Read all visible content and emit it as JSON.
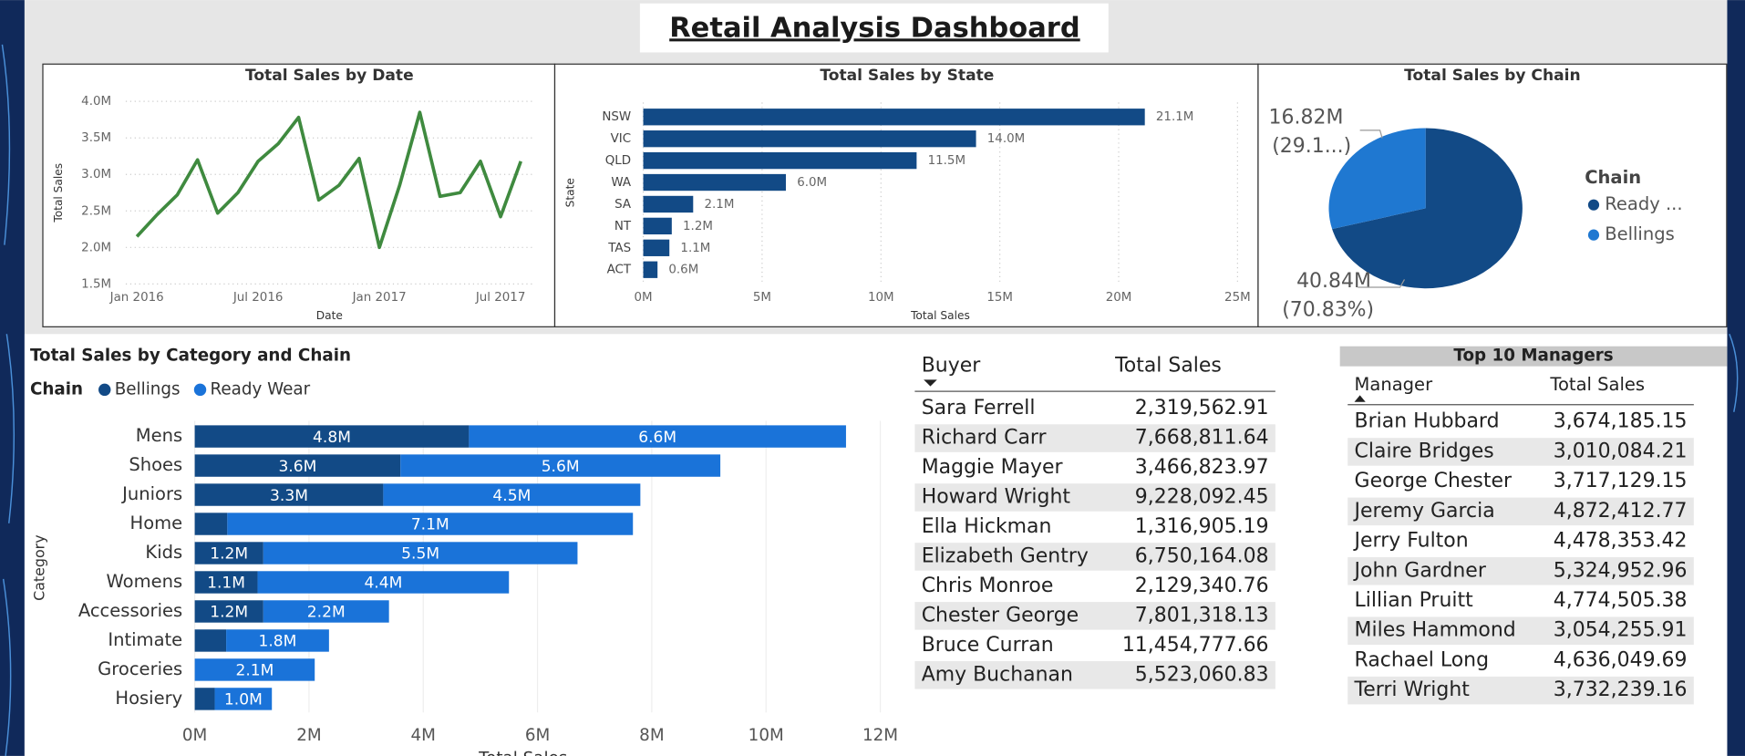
{
  "title": "Retail Analysis Dashboard",
  "chart_data": [
    {
      "type": "line",
      "title": "Total Sales by Date",
      "x_label": "Date",
      "y_label": "Total Sales",
      "color": "#3f8a3f",
      "x": [
        "2016-01",
        "2016-02",
        "2016-03",
        "2016-04",
        "2016-05",
        "2016-06",
        "2016-07",
        "2016-08",
        "2016-09",
        "2016-10",
        "2016-11",
        "2016-12",
        "2017-01",
        "2017-02",
        "2017-03",
        "2017-04",
        "2017-05",
        "2017-06",
        "2017-07",
        "2017-08"
      ],
      "values": [
        2150000,
        2450000,
        2720000,
        3200000,
        2470000,
        2750000,
        3180000,
        3420000,
        3780000,
        2650000,
        2850000,
        3220000,
        2000000,
        2850000,
        3850000,
        2700000,
        2750000,
        3180000,
        2420000,
        3180000
      ],
      "xlim": [
        "2016-01",
        "2017-08"
      ],
      "xticks": [
        {
          "value": "2016-01",
          "label": "Jan 2016"
        },
        {
          "value": "2016-07",
          "label": "Jul 2016"
        },
        {
          "value": "2017-01",
          "label": "Jan 2017"
        },
        {
          "value": "2017-07",
          "label": "Jul 2017"
        }
      ],
      "ylim": [
        1500000,
        4000000
      ],
      "yticks": [
        {
          "value": 1500000,
          "label": "1.5M"
        },
        {
          "value": 2000000,
          "label": "2.0M"
        },
        {
          "value": 2500000,
          "label": "2.5M"
        },
        {
          "value": 3000000,
          "label": "3.0M"
        },
        {
          "value": 3500000,
          "label": "3.5M"
        },
        {
          "value": 4000000,
          "label": "4.0M"
        }
      ],
      "grid": true
    },
    {
      "type": "bar",
      "orientation": "horizontal",
      "title": "Total Sales by State",
      "x_label": "Total Sales",
      "y_label": "State",
      "color": "#124a86",
      "categories": [
        "NSW",
        "VIC",
        "QLD",
        "WA",
        "SA",
        "NT",
        "TAS",
        "ACT"
      ],
      "values": [
        21100000,
        14000000,
        11500000,
        6000000,
        2100000,
        1200000,
        1100000,
        600000
      ],
      "value_labels": [
        "21.1M",
        "14.0M",
        "11.5M",
        "6.0M",
        "2.1M",
        "1.2M",
        "1.1M",
        "0.6M"
      ],
      "xlim": [
        0,
        25000000
      ],
      "xticks": [
        {
          "value": 0,
          "label": "0M"
        },
        {
          "value": 5000000,
          "label": "5M"
        },
        {
          "value": 10000000,
          "label": "10M"
        },
        {
          "value": 15000000,
          "label": "15M"
        },
        {
          "value": 20000000,
          "label": "20M"
        },
        {
          "value": 25000000,
          "label": "25M"
        }
      ],
      "grid": true
    },
    {
      "type": "pie",
      "title": "Total Sales by Chain",
      "legend_title": "Chain",
      "categories": [
        "Ready ...",
        "Bellings"
      ],
      "values": [
        40840000,
        16820000
      ],
      "value_labels": [
        "40.84M",
        "16.82M"
      ],
      "percent_labels": [
        "(70.83%)",
        "(29.1...)"
      ],
      "colors": [
        "#124a86",
        "#1f78d1"
      ]
    },
    {
      "type": "stacked-bar",
      "orientation": "horizontal",
      "title": "Total Sales by Category and Chain",
      "legend_title": "Chain",
      "x_label": "Total Sales",
      "y_label": "Category",
      "categories": [
        "Mens",
        "Shoes",
        "Juniors",
        "Home",
        "Kids",
        "Womens",
        "Accessories",
        "Intimate",
        "Groceries",
        "Hosiery"
      ],
      "series": [
        {
          "name": "Bellings",
          "color": "#124a86",
          "values": [
            4800000,
            3600000,
            3300000,
            570000,
            1200000,
            1100000,
            1200000,
            550000,
            null,
            350000
          ],
          "value_labels": [
            "4.8M",
            "3.6M",
            "3.3M",
            null,
            "1.2M",
            "1.1M",
            "1.2M",
            null,
            null,
            null
          ]
        },
        {
          "name": "Ready Wear",
          "color": "#1a73d9",
          "values": [
            6600000,
            5600000,
            4500000,
            7100000,
            5500000,
            4400000,
            2200000,
            1800000,
            2100000,
            1000000
          ],
          "value_labels": [
            "6.6M",
            "5.6M",
            "4.5M",
            "7.1M",
            "5.5M",
            "4.4M",
            "2.2M",
            "1.8M",
            "2.1M",
            "1.0M"
          ]
        }
      ],
      "xlim": [
        0,
        12000000
      ],
      "xticks": [
        {
          "value": 0,
          "label": "0M"
        },
        {
          "value": 2000000,
          "label": "2M"
        },
        {
          "value": 4000000,
          "label": "4M"
        },
        {
          "value": 6000000,
          "label": "6M"
        },
        {
          "value": 8000000,
          "label": "8M"
        },
        {
          "value": 10000000,
          "label": "10M"
        },
        {
          "value": 12000000,
          "label": "12M"
        }
      ],
      "grid": true
    }
  ],
  "buyer_table": {
    "columns": [
      "Buyer",
      "Total Sales"
    ],
    "rows": [
      [
        "Sara Ferrell",
        "2,319,562.91"
      ],
      [
        "Richard Carr",
        "7,668,811.64"
      ],
      [
        "Maggie Mayer",
        "3,466,823.97"
      ],
      [
        "Howard Wright",
        "9,228,092.45"
      ],
      [
        "Ella Hickman",
        "1,316,905.19"
      ],
      [
        "Elizabeth Gentry",
        "6,750,164.08"
      ],
      [
        "Chris Monroe",
        "2,129,340.76"
      ],
      [
        "Chester George",
        "7,801,318.13"
      ],
      [
        "Bruce Curran",
        "11,454,777.66"
      ],
      [
        "Amy Buchanan",
        "5,523,060.83"
      ]
    ]
  },
  "manager_table": {
    "title": "Top 10 Managers",
    "columns": [
      "Manager",
      "Total Sales"
    ],
    "rows": [
      [
        "Brian Hubbard",
        "3,674,185.15"
      ],
      [
        "Claire Bridges",
        "3,010,084.21"
      ],
      [
        "George Chester",
        "3,717,129.15"
      ],
      [
        "Jeremy Garcia",
        "4,872,412.77"
      ],
      [
        "Jerry Fulton",
        "4,478,353.42"
      ],
      [
        "John Gardner",
        "5,324,952.96"
      ],
      [
        "Lillian Pruitt",
        "4,774,505.38"
      ],
      [
        "Miles Hammond",
        "3,054,255.91"
      ],
      [
        "Rachael Long",
        "4,636,049.69"
      ],
      [
        "Terri Wright",
        "3,732,239.16"
      ]
    ]
  }
}
